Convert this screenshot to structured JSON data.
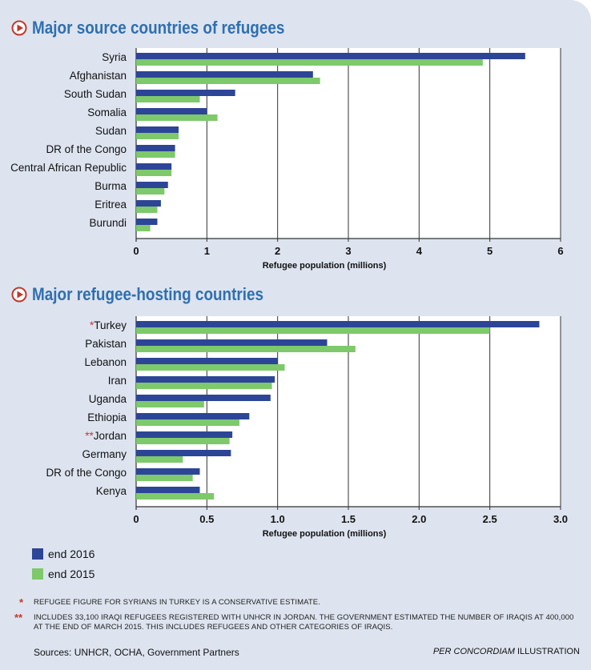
{
  "colors": {
    "end_2016": "#2d4597",
    "end_2015": "#7dc96b",
    "title": "#2f6fb0",
    "marker": "#c0392b",
    "background": "#dde4ef"
  },
  "chart_data": [
    {
      "type": "bar",
      "orientation": "horizontal",
      "title": "Major source countries of refugees",
      "xlabel": "Refugee population (millions)",
      "xlim": [
        0,
        6
      ],
      "xticks": [
        "0",
        "1",
        "2",
        "3",
        "4",
        "5",
        "6"
      ],
      "categories": [
        "Syria",
        "Afghanistan",
        "South Sudan",
        "Somalia",
        "Sudan",
        "DR of the Congo",
        "Central African Republic",
        "Burma",
        "Eritrea",
        "Burundi"
      ],
      "series": [
        {
          "name": "end 2016",
          "values": [
            5.5,
            2.5,
            1.4,
            1.0,
            0.6,
            0.55,
            0.5,
            0.45,
            0.35,
            0.3
          ]
        },
        {
          "name": "end 2015",
          "values": [
            4.9,
            2.6,
            0.9,
            1.15,
            0.6,
            0.55,
            0.5,
            0.4,
            0.3,
            0.2
          ]
        }
      ],
      "grid": true
    },
    {
      "type": "bar",
      "orientation": "horizontal",
      "title": "Major refugee-hosting countries",
      "xlabel": "Refugee population (millions)",
      "xlim": [
        0,
        3.0
      ],
      "xticks": [
        "0",
        "0.5",
        "1.0",
        "1.5",
        "2.0",
        "2.5",
        "3.0"
      ],
      "categories": [
        "Turkey",
        "Pakistan",
        "Lebanon",
        "Iran",
        "Uganda",
        "Ethiopia",
        "Jordan",
        "Germany",
        "DR of the Congo",
        "Kenya"
      ],
      "markers": [
        "*",
        "",
        "",
        "",
        "",
        "",
        "**",
        "",
        "",
        ""
      ],
      "series": [
        {
          "name": "end 2016",
          "values": [
            2.85,
            1.35,
            1.0,
            0.98,
            0.95,
            0.8,
            0.68,
            0.67,
            0.45,
            0.45
          ]
        },
        {
          "name": "end 2015",
          "values": [
            2.5,
            1.55,
            1.05,
            0.96,
            0.48,
            0.73,
            0.66,
            0.33,
            0.4,
            0.55
          ]
        }
      ],
      "grid": true
    }
  ],
  "legend": [
    {
      "label": "end 2016",
      "color": "#2d4597"
    },
    {
      "label": "end 2015",
      "color": "#7dc96b"
    }
  ],
  "notes": [
    {
      "mark": "*",
      "text": "REFUGEE FIGURE FOR SYRIANS IN TURKEY IS A CONSERVATIVE ESTIMATE."
    },
    {
      "mark": "**",
      "text": "INCLUDES 33,100 IRAQI REFUGEES REGISTERED WITH UNHCR IN JORDAN. THE GOVERNMENT ESTIMATED THE NUMBER OF IRAQIS AT 400,000 AT THE END OF MARCH 2015. THIS INCLUDES REFUGEES AND OTHER CATEGORIES OF IRAQIS."
    }
  ],
  "sources": "Sources: UNHCR, OCHA, Government Partners",
  "credit_italic": "PER CONCORDIAM",
  "credit_rest": "ILLUSTRATION"
}
